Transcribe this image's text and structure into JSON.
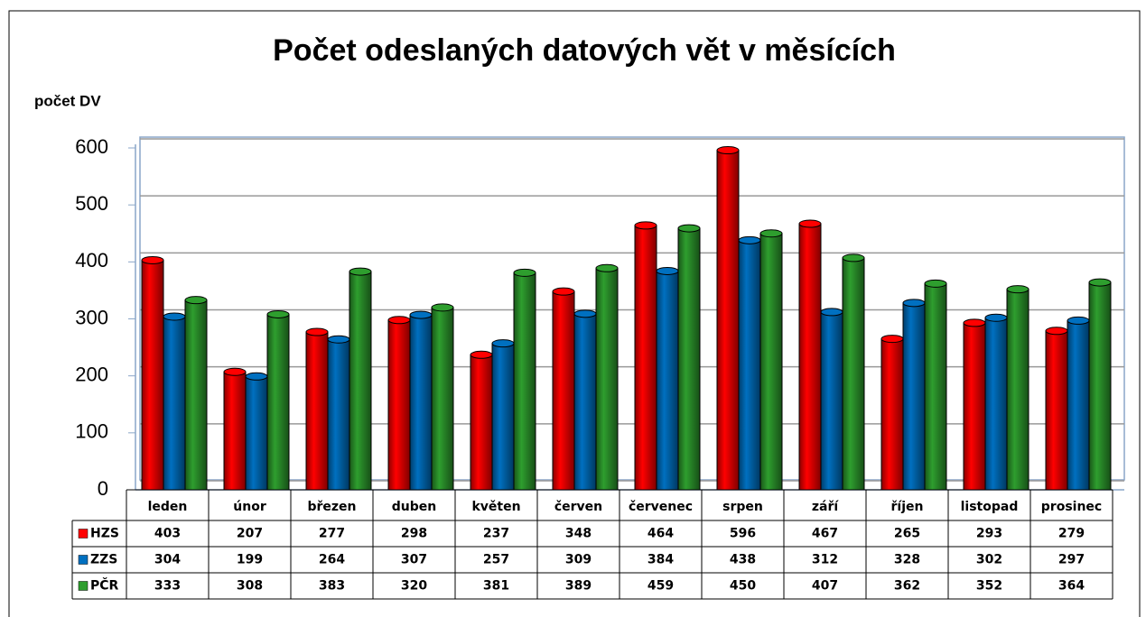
{
  "chart_data": {
    "type": "bar",
    "title": "Počet odeslaných datových vět v měsících",
    "y_label": "počet DV",
    "categories": [
      "leden",
      "únor",
      "březen",
      "duben",
      "květen",
      "červen",
      "červenec",
      "srpen",
      "září",
      "říjen",
      "listopad",
      "prosinec"
    ],
    "series": [
      {
        "name": "HZS",
        "color": "#ff0000",
        "values": [
          403,
          207,
          277,
          298,
          237,
          348,
          464,
          596,
          467,
          265,
          293,
          279
        ]
      },
      {
        "name": "ZZS",
        "color": "#0070c0",
        "values": [
          304,
          199,
          264,
          307,
          257,
          309,
          384,
          438,
          312,
          328,
          302,
          297
        ]
      },
      {
        "name": "PČR",
        "color": "#2e9e2e",
        "values": [
          333,
          308,
          383,
          320,
          381,
          389,
          459,
          450,
          407,
          362,
          352,
          364
        ]
      }
    ],
    "ylim": [
      0,
      600
    ],
    "yticks": [
      0,
      100,
      200,
      300,
      400,
      500,
      600
    ],
    "grid": true
  }
}
